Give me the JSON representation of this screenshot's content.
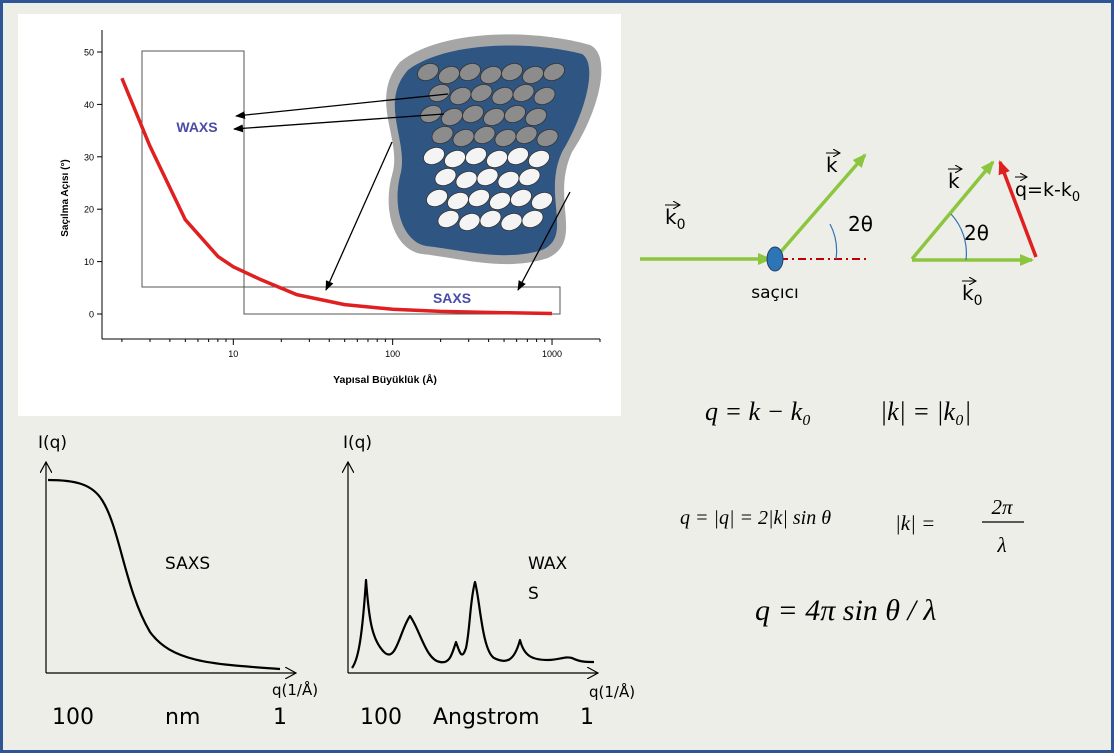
{
  "top_chart": {
    "ylabel": "Saçılma Açısı   (°)",
    "xlabel": "Yapısal Büyüklük (Å)",
    "y_ticks": [
      "0",
      "10",
      "20",
      "30",
      "40",
      "50"
    ],
    "x_ticks": [
      "10",
      "100",
      "1000"
    ],
    "waxs_label": "WAXS",
    "saxs_label": "SAXS",
    "colors": {
      "curve": "#e02020",
      "labels": "#4a4aa8"
    }
  },
  "chart_data": {
    "type": "line",
    "xlabel": "Yapısal Büyüklük (Å)",
    "ylabel": "Saçılma Açısı   (°)",
    "xscale": "log",
    "xlim": [
      1.5,
      2000
    ],
    "ylim": [
      0,
      50
    ],
    "series": [
      {
        "x": [
          2,
          3,
          5,
          8,
          10,
          15,
          25,
          50,
          100,
          200,
          500,
          1000
        ],
        "y": [
          45,
          32,
          18,
          11,
          9,
          6.5,
          3.7,
          1.8,
          0.9,
          0.5,
          0.25,
          0.1
        ]
      }
    ]
  },
  "scatter_diagram": {
    "k0_label": "k",
    "k0_sub": "0",
    "k_label": "k",
    "angle_label": "2θ",
    "scatterer_label": "saçıcı",
    "colors": {
      "incident": "#8cc63f",
      "dashed": "#c00000",
      "q": "#e02020",
      "dot": "#2e75b6"
    }
  },
  "triangle_diagram": {
    "k_label": "k",
    "angle_label": "2θ",
    "k0_label": "k",
    "k0_sub": "0",
    "q_label": "q=k-k",
    "q_sub": "0"
  },
  "equations": {
    "eq1": "q = k − k₀",
    "eq2": "|k| = |k₀|",
    "eq3": "q = |q| = 2|k| sin θ",
    "eq4_lhs": "|k| =",
    "eq4_num": "2π",
    "eq4_den": "λ",
    "eq5": "q = 4π sin θ / λ"
  },
  "saxs_plot": {
    "ylabel": "I(q)",
    "xlabel": "q(1/Å)",
    "name": "SAXS",
    "axis_left": "100",
    "axis_mid": "nm",
    "axis_right": "1"
  },
  "waxs_plot": {
    "ylabel": "I(q)",
    "xlabel": "q(1/Å)",
    "name_line1": "WAX",
    "name_line2": "S",
    "axis_left": "100",
    "axis_mid": "Angstrom",
    "axis_right": "1"
  }
}
